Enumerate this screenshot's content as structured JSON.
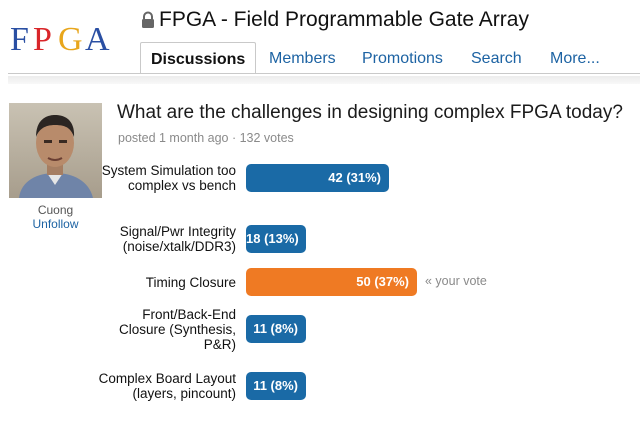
{
  "logo": {
    "text": "FPGA",
    "letters": [
      "F",
      "P",
      "G",
      "A"
    ],
    "colors": [
      "#2a4fa3",
      "#d9262a",
      "#e8a61c",
      "#2a4fa3"
    ]
  },
  "group": {
    "title": "FPGA - Field Programmable Gate Array",
    "icon": "lock-icon"
  },
  "tabs": [
    {
      "label": "Discussions",
      "active": true
    },
    {
      "label": "Members",
      "active": false
    },
    {
      "label": "Promotions",
      "active": false
    },
    {
      "label": "Search",
      "active": false
    },
    {
      "label": "More...",
      "active": false
    }
  ],
  "author": {
    "name": "Cuong",
    "follow_label": "Unfollow"
  },
  "poll": {
    "question": "What are the challenges in designing complex FPGA today?",
    "meta": "posted 1 month ago · 132 votes",
    "your_vote_label": "« your vote",
    "options": [
      {
        "label": "System Simulation too complex vs bench",
        "result": "42  (31%)",
        "votes": 42,
        "percent": 31,
        "voted": false
      },
      {
        "label": "Signal/Pwr Integrity (noise/xtalk/DDR3)",
        "result": "18  (13%)",
        "votes": 18,
        "percent": 13,
        "voted": false
      },
      {
        "label": "Timing Closure",
        "result": "50  (37%)",
        "votes": 50,
        "percent": 37,
        "voted": true
      },
      {
        "label": "Front/Back-End Closure (Synthesis, P&R)",
        "result": "11  (8%)",
        "votes": 11,
        "percent": 8,
        "voted": false
      },
      {
        "label": "Complex Board Layout (layers, pincount)",
        "result": "11  (8%)",
        "votes": 11,
        "percent": 8,
        "voted": false
      }
    ]
  },
  "colors": {
    "bar": "#1a6aa6",
    "bar_voted": "#ef7a23",
    "link": "#1d63a3"
  }
}
